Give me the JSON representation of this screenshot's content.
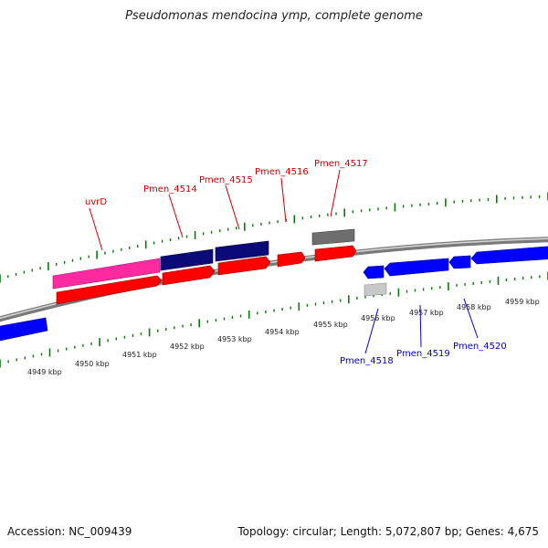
{
  "title": "Pseudomonas mendocina ymp, complete genome",
  "footer": {
    "accession": "Accession: NC_009439",
    "summary": "Topology: circular; Length: 5,072,807 bp; Genes: 4,675"
  },
  "colors": {
    "forward_label": "#cc0000",
    "reverse_label": "#0000cc",
    "tick": "#0a7a0a",
    "backbone": "#8c8c8c",
    "pink_gene": "#ff2aa0",
    "navy_gene": "#0a0a78",
    "gray_gene": "#6e6e6e",
    "light_gray_gene": "#c8c8c8",
    "red_cds": "#ff0000",
    "blue_cds": "#0000ff"
  },
  "kbp_labels": [
    "4949 kbp",
    "4950 kbp",
    "4951 kbp",
    "4952 kbp",
    "4953 kbp",
    "4954 kbp",
    "4955 kbp",
    "4956 kbp",
    "4957 kbp",
    "4958 kbp",
    "4959 kbp"
  ],
  "gene_labels": {
    "forward": [
      "uvrD",
      "Pmen_4514",
      "Pmen_4515",
      "Pmen_4516",
      "Pmen_4517"
    ],
    "reverse": [
      "Pmen_4518",
      "Pmen_4519",
      "Pmen_4520"
    ]
  }
}
